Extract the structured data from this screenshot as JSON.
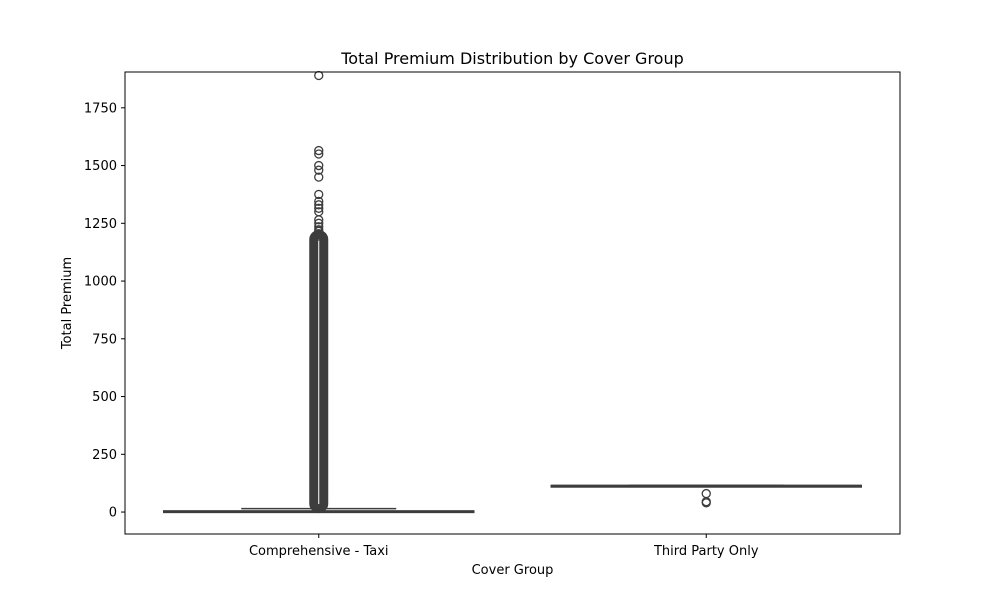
{
  "chart_data": {
    "type": "box",
    "title": "Total Premium Distribution by Cover Group",
    "xlabel": "Cover Group",
    "ylabel": "Total Premium",
    "categories": [
      "Comprehensive - Taxi",
      "Third Party Only"
    ],
    "ylim": [
      -95,
      1905
    ],
    "yticks": [
      0,
      250,
      500,
      750,
      1000,
      1250,
      1500,
      1750
    ],
    "grid": false,
    "box_color": "#3d3d3d",
    "boxes": [
      {
        "category": "Comprehensive - Taxi",
        "whisker_low": 0,
        "q1": 0,
        "median": 2,
        "q3": 5,
        "whisker_high": 15,
        "outlier_dense_range": [
          15,
          1180
        ],
        "outliers": [
          1195,
          1205,
          1215,
          1222,
          1235,
          1250,
          1265,
          1300,
          1315,
          1330,
          1345,
          1375,
          1450,
          1480,
          1500,
          1550,
          1565,
          1890
        ]
      },
      {
        "category": "Third Party Only",
        "whisker_low": 115,
        "q1": 115,
        "median": 115,
        "q3": 115,
        "whisker_high": 115,
        "outliers": [
          40,
          45,
          80
        ]
      }
    ]
  }
}
